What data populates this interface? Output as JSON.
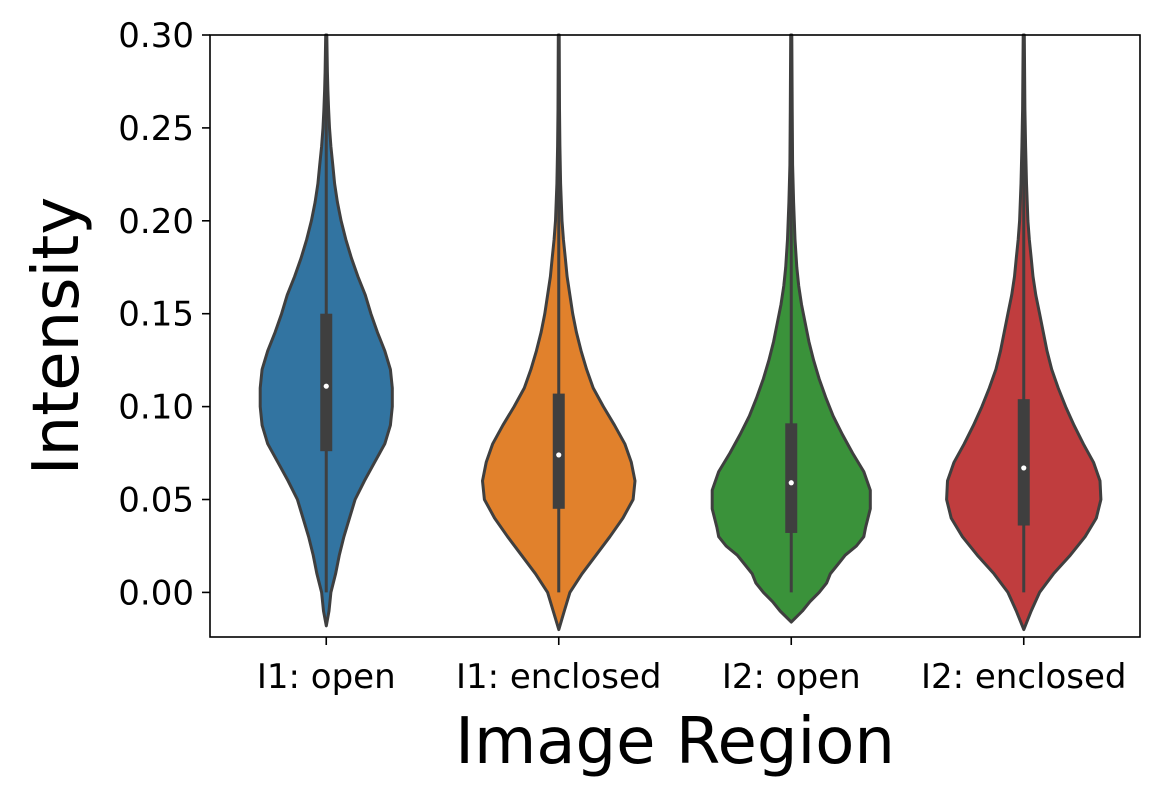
{
  "chart_data": {
    "type": "violin",
    "title": "",
    "xlabel": "Image Region",
    "ylabel": "Intensity",
    "ylim": [
      -0.024,
      0.3
    ],
    "yticks": [
      0.0,
      0.05,
      0.1,
      0.15,
      0.2,
      0.25,
      0.3
    ],
    "ytick_labels": [
      "0.00",
      "0.05",
      "0.10",
      "0.15",
      "0.20",
      "0.25",
      "0.30"
    ],
    "categories": [
      "I1: open",
      "I1: enclosed",
      "I2: open",
      "I2: enclosed"
    ],
    "colors": [
      "#3274a1",
      "#e1812c",
      "#3a923a",
      "#c03d3e"
    ],
    "edge_color": "#3f3f3f",
    "median_color": "#ffffff",
    "series": [
      {
        "name": "I1: open",
        "median": 0.111,
        "q1": 0.076,
        "q3": 0.15,
        "whisker_low": 0.0,
        "whisker_high": 0.3,
        "violin_min": -0.018,
        "violin_max": 0.3,
        "profile_y": [
          -0.018,
          -0.01,
          0.0,
          0.01,
          0.02,
          0.03,
          0.04,
          0.05,
          0.06,
          0.07,
          0.08,
          0.09,
          0.1,
          0.11,
          0.12,
          0.13,
          0.14,
          0.15,
          0.16,
          0.17,
          0.18,
          0.19,
          0.2,
          0.21,
          0.22,
          0.23,
          0.24,
          0.25,
          0.26,
          0.27,
          0.28,
          0.3
        ],
        "profile_width": [
          0.0,
          0.03,
          0.05,
          0.1,
          0.14,
          0.19,
          0.25,
          0.31,
          0.41,
          0.52,
          0.63,
          0.69,
          0.71,
          0.71,
          0.69,
          0.63,
          0.55,
          0.48,
          0.42,
          0.34,
          0.27,
          0.21,
          0.16,
          0.12,
          0.09,
          0.07,
          0.05,
          0.035,
          0.025,
          0.018,
          0.012,
          0.006
        ]
      },
      {
        "name": "I1: enclosed",
        "median": 0.074,
        "q1": 0.045,
        "q3": 0.107,
        "whisker_low": 0.0,
        "whisker_high": 0.3,
        "violin_min": -0.02,
        "violin_max": 0.3,
        "profile_y": [
          -0.02,
          -0.01,
          0.0,
          0.01,
          0.02,
          0.03,
          0.04,
          0.05,
          0.06,
          0.07,
          0.08,
          0.09,
          0.1,
          0.11,
          0.12,
          0.13,
          0.14,
          0.15,
          0.16,
          0.17,
          0.18,
          0.19,
          0.2,
          0.22,
          0.24,
          0.26,
          0.3
        ],
        "profile_width": [
          0.0,
          0.06,
          0.12,
          0.25,
          0.4,
          0.55,
          0.69,
          0.8,
          0.82,
          0.78,
          0.71,
          0.6,
          0.48,
          0.37,
          0.3,
          0.24,
          0.19,
          0.15,
          0.12,
          0.09,
          0.07,
          0.05,
          0.035,
          0.02,
          0.012,
          0.008,
          0.005
        ]
      },
      {
        "name": "I2: open",
        "median": 0.059,
        "q1": 0.032,
        "q3": 0.091,
        "whisker_low": 0.0,
        "whisker_high": 0.3,
        "violin_min": -0.016,
        "violin_max": 0.3,
        "profile_y": [
          -0.016,
          -0.01,
          -0.005,
          0.0,
          0.005,
          0.01,
          0.015,
          0.02,
          0.025,
          0.03,
          0.035,
          0.045,
          0.055,
          0.065,
          0.075,
          0.085,
          0.095,
          0.105,
          0.115,
          0.125,
          0.135,
          0.145,
          0.155,
          0.165,
          0.175,
          0.19,
          0.21,
          0.23,
          0.26,
          0.3
        ],
        "profile_width": [
          0.0,
          0.12,
          0.2,
          0.3,
          0.38,
          0.42,
          0.5,
          0.58,
          0.7,
          0.78,
          0.8,
          0.85,
          0.85,
          0.78,
          0.66,
          0.55,
          0.45,
          0.37,
          0.3,
          0.24,
          0.19,
          0.15,
          0.11,
          0.08,
          0.06,
          0.04,
          0.025,
          0.015,
          0.01,
          0.006
        ]
      },
      {
        "name": "I2: enclosed",
        "median": 0.067,
        "q1": 0.036,
        "q3": 0.104,
        "whisker_low": 0.0,
        "whisker_high": 0.3,
        "violin_min": -0.02,
        "violin_max": 0.3,
        "profile_y": [
          -0.02,
          -0.01,
          0.0,
          0.01,
          0.02,
          0.03,
          0.04,
          0.05,
          0.06,
          0.07,
          0.08,
          0.09,
          0.1,
          0.11,
          0.12,
          0.13,
          0.14,
          0.15,
          0.16,
          0.17,
          0.18,
          0.19,
          0.2,
          0.22,
          0.24,
          0.26,
          0.3
        ],
        "profile_width": [
          0.0,
          0.08,
          0.17,
          0.32,
          0.5,
          0.66,
          0.78,
          0.83,
          0.82,
          0.75,
          0.64,
          0.54,
          0.45,
          0.37,
          0.3,
          0.25,
          0.21,
          0.17,
          0.13,
          0.1,
          0.08,
          0.06,
          0.045,
          0.03,
          0.02,
          0.012,
          0.006
        ]
      }
    ]
  }
}
